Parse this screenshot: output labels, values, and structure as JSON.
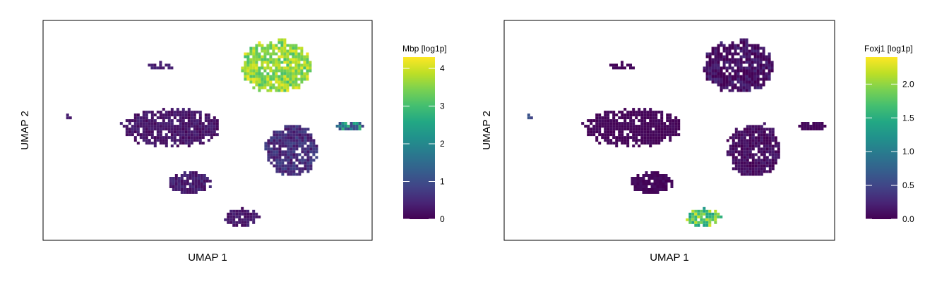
{
  "chart_data": [
    {
      "type": "scatter",
      "xlabel": "UMAP 1",
      "ylabel": "UMAP 2",
      "legend_title": "Mbp [log1p]",
      "legend_placement": "right",
      "colorscale": "viridis",
      "value_range": [
        0,
        4.3
      ],
      "legend_ticks": [
        {
          "label": "0",
          "value": 0
        },
        {
          "label": "1",
          "value": 1
        },
        {
          "label": "2",
          "value": 2
        },
        {
          "label": "3",
          "value": 3
        },
        {
          "label": "4",
          "value": 4
        }
      ],
      "grid": false,
      "clusters": [
        {
          "cx": 0.72,
          "cy": 0.82,
          "rx": 0.11,
          "ry": 0.13,
          "value": 3.6,
          "jitter": 0.6
        },
        {
          "cx": 0.38,
          "cy": 0.52,
          "rx": 0.16,
          "ry": 0.09,
          "value": 0.25,
          "jitter": 0.2
        },
        {
          "cx": 0.77,
          "cy": 0.41,
          "rx": 0.085,
          "ry": 0.13,
          "value": 0.55,
          "jitter": 0.35
        },
        {
          "cx": 0.44,
          "cy": 0.25,
          "rx": 0.07,
          "ry": 0.05,
          "value": 0.35,
          "jitter": 0.25
        },
        {
          "cx": 0.61,
          "cy": 0.08,
          "rx": 0.055,
          "ry": 0.045,
          "value": 0.3,
          "jitter": 0.2
        },
        {
          "cx": 0.96,
          "cy": 0.53,
          "rx": 0.045,
          "ry": 0.025,
          "value": 1.8,
          "jitter": 1.2
        },
        {
          "cx": 0.35,
          "cy": 0.82,
          "rx": 0.04,
          "ry": 0.02,
          "value": 0.4,
          "jitter": 0.2
        },
        {
          "cx": 0.05,
          "cy": 0.57,
          "rx": 0.012,
          "ry": 0.012,
          "value": 0.3,
          "jitter": 0.1
        }
      ]
    },
    {
      "type": "scatter",
      "xlabel": "UMAP 1",
      "ylabel": "UMAP 2",
      "legend_title": "Foxj1 [log1p]",
      "legend_placement": "right",
      "colorscale": "viridis",
      "value_range": [
        0,
        2.4
      ],
      "legend_ticks": [
        {
          "label": "0.0",
          "value": 0.0
        },
        {
          "label": "0.5",
          "value": 0.5
        },
        {
          "label": "1.0",
          "value": 1.0
        },
        {
          "label": "1.5",
          "value": 1.5
        },
        {
          "label": "2.0",
          "value": 2.0
        }
      ],
      "grid": false,
      "clusters": [
        {
          "cx": 0.72,
          "cy": 0.82,
          "rx": 0.11,
          "ry": 0.13,
          "value": 0.1,
          "jitter": 0.2
        },
        {
          "cx": 0.38,
          "cy": 0.52,
          "rx": 0.16,
          "ry": 0.09,
          "value": 0.03,
          "jitter": 0.05
        },
        {
          "cx": 0.77,
          "cy": 0.41,
          "rx": 0.085,
          "ry": 0.13,
          "value": 0.08,
          "jitter": 0.12
        },
        {
          "cx": 0.44,
          "cy": 0.25,
          "rx": 0.07,
          "ry": 0.05,
          "value": 0.05,
          "jitter": 0.06
        },
        {
          "cx": 0.61,
          "cy": 0.08,
          "rx": 0.055,
          "ry": 0.045,
          "value": 1.8,
          "jitter": 0.5
        },
        {
          "cx": 0.96,
          "cy": 0.53,
          "rx": 0.045,
          "ry": 0.025,
          "value": 0.05,
          "jitter": 0.05
        },
        {
          "cx": 0.35,
          "cy": 0.82,
          "rx": 0.04,
          "ry": 0.02,
          "value": 0.05,
          "jitter": 0.05
        },
        {
          "cx": 0.05,
          "cy": 0.57,
          "rx": 0.012,
          "ry": 0.012,
          "value": 0.5,
          "jitter": 0.2
        }
      ]
    }
  ]
}
